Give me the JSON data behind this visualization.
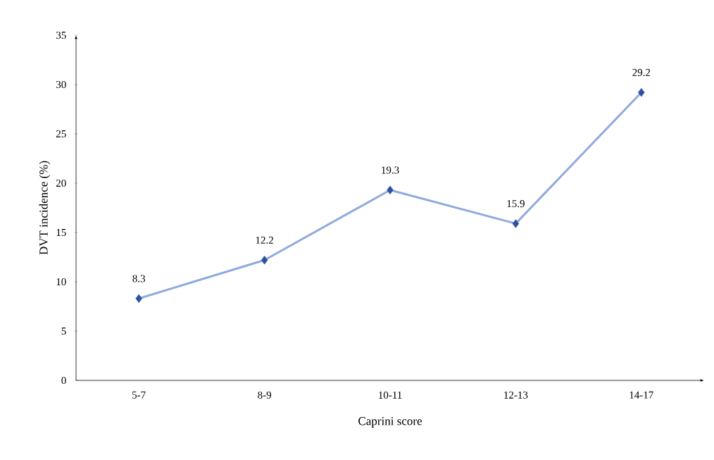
{
  "chart_data": {
    "type": "line",
    "xlabel": "Caprini score",
    "ylabel": "DVT incidence (%)",
    "categories": [
      "5-7",
      "8-9",
      "10-11",
      "12-13",
      "14-17"
    ],
    "values": [
      8.3,
      12.2,
      19.3,
      15.9,
      29.2
    ],
    "color": "#8faadc",
    "colors": [
      "#2f52a0",
      "#2f52a0",
      "#2f52a0",
      "#2f52a0",
      "#2f52a0"
    ],
    "marker": "diamond",
    "line_style": "solid",
    "data_labels": true,
    "grid": false,
    "ylim": [
      0,
      35
    ],
    "yticks": [
      0,
      5,
      10,
      15,
      20,
      25,
      30,
      35
    ]
  }
}
